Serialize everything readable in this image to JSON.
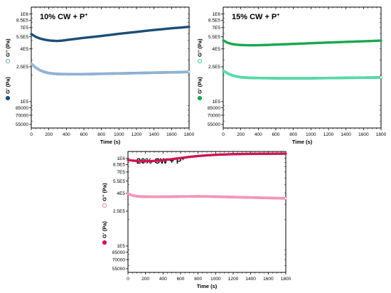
{
  "chart_data": [
    {
      "type": "scatter",
      "title": "10% CW + P",
      "title_superscript": "+",
      "xlabel": "Time (s)",
      "ylabel_gpp": "G'' (Pa)",
      "ylabel_gp": "G' (Pa)",
      "y_scale": "log",
      "xlim": [
        0,
        1800
      ],
      "ylim": [
        50000,
        1200000
      ],
      "xticks": [
        "0",
        "200",
        "400",
        "600",
        "800",
        "1000",
        "1200",
        "1400",
        "1600",
        "1800"
      ],
      "yticks": [
        {
          "value": 1000000,
          "label": "1E6"
        },
        {
          "value": 850000,
          "label": "8.5E5"
        },
        {
          "value": 700000,
          "label": "7E5"
        },
        {
          "value": 550000,
          "label": "5.5E5"
        },
        {
          "value": 400000,
          "label": "4E5"
        },
        {
          "value": 250000,
          "label": "2.5E5"
        },
        {
          "value": 100000,
          "label": "1E5"
        },
        {
          "value": 85000,
          "label": "85000"
        },
        {
          "value": 70000,
          "label": "70000"
        },
        {
          "value": 55000,
          "label": "55000"
        }
      ],
      "series": [
        {
          "name": "G'",
          "marker": "filled",
          "color": "#1f4e79",
          "x": [
            0,
            50,
            100,
            150,
            200,
            250,
            300,
            350,
            400,
            500,
            600,
            700,
            800,
            900,
            1000,
            1100,
            1200,
            1300,
            1400,
            1500,
            1600,
            1700,
            1800
          ],
          "y": [
            590000,
            550000,
            525000,
            510000,
            500000,
            495000,
            493000,
            497000,
            505000,
            520000,
            535000,
            548000,
            562000,
            578000,
            595000,
            610000,
            625000,
            642000,
            658000,
            672000,
            688000,
            700000,
            715000
          ]
        },
        {
          "name": "G''",
          "marker": "open",
          "color": "#7fa6cc",
          "x": [
            0,
            50,
            100,
            150,
            200,
            250,
            300,
            400,
            500,
            600,
            700,
            800,
            900,
            1000,
            1100,
            1200,
            1300,
            1400,
            1500,
            1600,
            1700,
            1800
          ],
          "y": [
            270000,
            245000,
            228000,
            218000,
            212000,
            209000,
            207000,
            206000,
            206000,
            206000,
            207000,
            208000,
            209000,
            210000,
            211000,
            212000,
            213000,
            214000,
            215000,
            216000,
            217000,
            219000
          ]
        }
      ]
    },
    {
      "type": "scatter",
      "title": "15% CW + P",
      "title_superscript": "+",
      "xlabel": "Time (s)",
      "ylabel_gpp": "G'' (Pa)",
      "ylabel_gp": "G' (Pa)",
      "y_scale": "log",
      "xlim": [
        0,
        1800
      ],
      "ylim": [
        50000,
        1200000
      ],
      "xticks": [
        "0",
        "200",
        "400",
        "600",
        "800",
        "1000",
        "1200",
        "1400",
        "1600",
        "1800"
      ],
      "yticks": [
        {
          "value": 1000000,
          "label": "1E6"
        },
        {
          "value": 850000,
          "label": "8.5E5"
        },
        {
          "value": 700000,
          "label": "7E5"
        },
        {
          "value": 550000,
          "label": "5.5E5"
        },
        {
          "value": 400000,
          "label": "4E5"
        },
        {
          "value": 250000,
          "label": "2.5E5"
        },
        {
          "value": 100000,
          "label": "1E5"
        },
        {
          "value": 85000,
          "label": "85000"
        },
        {
          "value": 70000,
          "label": "70000"
        },
        {
          "value": 55000,
          "label": "55000"
        }
      ],
      "series": [
        {
          "name": "G'",
          "marker": "filled",
          "color": "#1aa84e",
          "x": [
            0,
            50,
            100,
            150,
            200,
            300,
            400,
            500,
            600,
            700,
            800,
            900,
            1000,
            1100,
            1200,
            1300,
            1400,
            1500,
            1600,
            1700,
            1800
          ],
          "y": [
            500000,
            470000,
            455000,
            447000,
            443000,
            440000,
            441000,
            444000,
            448000,
            452000,
            456000,
            460000,
            465000,
            469000,
            473000,
            477000,
            481000,
            485000,
            489000,
            493000,
            497000
          ]
        },
        {
          "name": "G''",
          "marker": "open",
          "color": "#3fd49a",
          "x": [
            0,
            50,
            100,
            150,
            200,
            300,
            400,
            500,
            600,
            700,
            800,
            900,
            1000,
            1100,
            1200,
            1300,
            1400,
            1500,
            1600,
            1700,
            1800
          ],
          "y": [
            225000,
            210000,
            200000,
            194000,
            190000,
            187000,
            186000,
            185500,
            185000,
            185000,
            185000,
            185000,
            185000,
            185500,
            186000,
            186500,
            187000,
            187500,
            188000,
            188500,
            189000
          ]
        }
      ]
    },
    {
      "type": "scatter",
      "title": "20% CW + P",
      "title_superscript": "+",
      "xlabel": "Time (s)",
      "ylabel_gpp": "G'' (Pa)",
      "ylabel_gp": "G' (Pa)",
      "y_scale": "log",
      "xlim": [
        0,
        1800
      ],
      "ylim": [
        50000,
        1200000
      ],
      "xticks": [
        "0",
        "200",
        "400",
        "600",
        "800",
        "1000",
        "1200",
        "1400",
        "1600",
        "1800"
      ],
      "yticks": [
        {
          "value": 1000000,
          "label": "1E6"
        },
        {
          "value": 850000,
          "label": "8.5E5"
        },
        {
          "value": 700000,
          "label": "7E5"
        },
        {
          "value": 550000,
          "label": "5.5E5"
        },
        {
          "value": 400000,
          "label": "4E5"
        },
        {
          "value": 250000,
          "label": "2.5E5"
        },
        {
          "value": 100000,
          "label": "1E5"
        },
        {
          "value": 85000,
          "label": "85000"
        },
        {
          "value": 70000,
          "label": "70000"
        },
        {
          "value": 55000,
          "label": "55000"
        }
      ],
      "series": [
        {
          "name": "G'",
          "marker": "filled",
          "color": "#cc1556",
          "x": [
            0,
            50,
            100,
            150,
            200,
            300,
            400,
            500,
            600,
            700,
            800,
            900,
            1000,
            1100,
            1200,
            1300,
            1400,
            1500,
            1600,
            1700,
            1800
          ],
          "y": [
            960000,
            945000,
            935000,
            930000,
            928000,
            935000,
            955000,
            980000,
            1010000,
            1040000,
            1065000,
            1085000,
            1100000,
            1110000,
            1118000,
            1123000,
            1126000,
            1128000,
            1130000,
            1132000,
            1134000
          ]
        },
        {
          "name": "G''",
          "marker": "open",
          "color": "#f087b0",
          "x": [
            0,
            50,
            100,
            150,
            200,
            300,
            400,
            500,
            600,
            700,
            800,
            900,
            1000,
            1100,
            1200,
            1300,
            1400,
            1500,
            1600,
            1700,
            1800
          ],
          "y": [
            395000,
            378000,
            370000,
            367000,
            366000,
            365000,
            365500,
            366000,
            367000,
            368000,
            369000,
            368000,
            366000,
            364000,
            362000,
            360000,
            358000,
            356000,
            354000,
            352000,
            350000
          ]
        }
      ]
    }
  ]
}
